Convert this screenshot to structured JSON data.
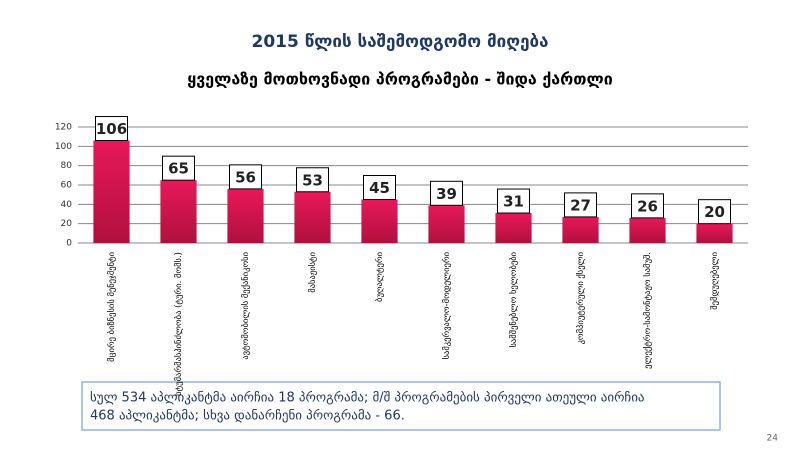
{
  "chart_data": {
    "type": "bar",
    "title": "2015 წლის საშემოდგომო მიღება",
    "subtitle": "ყველაზე მოთხოვნადი პროგრამები - შიდა ქართლი",
    "categories": [
      "მცირე ბიზნესის მენეჯმენტი",
      "სტუმარმასპინძლობა (ტური. მომს.)",
      "ავტომობილის მექანიკოსი",
      "მასაჟისტი",
      "ბუღალტერი",
      "სამკერვალო-მოდელიერი",
      "სამშენებლო ხელობები",
      "კომპიუტერული ქსელი",
      "ელექტრო-სამონტაჟო სამუშ.",
      "შემდუღებელი"
    ],
    "values": [
      106,
      65,
      56,
      53,
      45,
      39,
      31,
      27,
      26,
      20
    ],
    "color": "#d81450",
    "ylim": [
      0,
      120
    ],
    "yticks": [
      0,
      20,
      40,
      60,
      80,
      100,
      120
    ],
    "grid": true,
    "annotations": [
      "სულ 534 აპლიკანტმა აირჩია 18 პროგრამა; მ/შ პროგრამების პირველი ათეული აირჩია",
      "468 აპლიკანტმა; სხვა დანარჩენი პროგრამა - 66."
    ]
  },
  "page_number": "24"
}
